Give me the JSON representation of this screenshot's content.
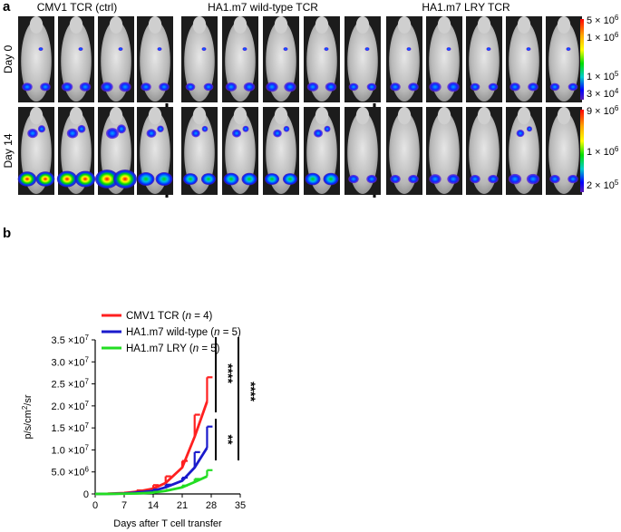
{
  "panel_a": {
    "label": "a",
    "groups": [
      {
        "label": "CMV1 TCR (ctrl)",
        "mice_day0": 4,
        "mice_day14": 4
      },
      {
        "label": "HA1.m7 wild-type TCR",
        "mice_day0": 5,
        "mice_day14": 5
      },
      {
        "label": "HA1.m7 LRY TCR",
        "mice_day0": 5,
        "mice_day14": 5
      }
    ],
    "rows": [
      {
        "label": "Day 0",
        "scale_labels": [
          {
            "base": "5 × 10",
            "exp": "6"
          },
          {
            "base": "1 × 10",
            "exp": "6"
          },
          {
            "base": "1 × 10",
            "exp": "5"
          },
          {
            "base": "3 × 10",
            "exp": "4"
          }
        ],
        "signal_levels": [
          [
            0.2,
            0.25,
            0.3,
            0.2
          ],
          [
            0.15,
            0.25,
            0.3,
            0.25,
            0.15
          ],
          [
            0.2,
            0.3,
            0.15,
            0.2,
            0.15
          ]
        ]
      },
      {
        "label": "Day 14",
        "scale_labels": [
          {
            "base": "9 × 10",
            "exp": "6"
          },
          {
            "base": "1 × 10",
            "exp": "6"
          },
          {
            "base": "2 × 10",
            "exp": "5"
          }
        ],
        "signal_levels": [
          [
            0.7,
            0.8,
            1.0,
            0.6
          ],
          [
            0.45,
            0.5,
            0.45,
            0.5,
            0.2
          ],
          [
            0.2,
            0.3,
            0.2,
            0.35,
            0.2
          ]
        ]
      }
    ],
    "colormap": [
      "#ff0000",
      "#ffa500",
      "#ffff00",
      "#00dd00",
      "#00cccc",
      "#0000ff",
      "#5a1fb4"
    ]
  },
  "panel_b": {
    "label": "b",
    "significance": [
      "****",
      "**",
      "****"
    ]
  },
  "chart_data": {
    "type": "line",
    "xlabel": "Days after T cell transfer",
    "ylabel_base": "p/s/cm",
    "ylabel_sup": "2",
    "ylabel_tail": "/sr",
    "xlim": [
      0,
      35
    ],
    "ylim": [
      0,
      35000000
    ],
    "x_ticks": [
      "0",
      "7",
      "14",
      "21",
      "28",
      "35"
    ],
    "y_ticks": [
      {
        "value": 0,
        "label": "0"
      },
      {
        "value": 5000000,
        "base": "5.0 ×10",
        "exp": "6"
      },
      {
        "value": 10000000,
        "base": "1.0 ×10",
        "exp": "7"
      },
      {
        "value": 15000000,
        "base": "1.5 ×10",
        "exp": "7"
      },
      {
        "value": 20000000,
        "base": "2.0 ×10",
        "exp": "7"
      },
      {
        "value": 25000000,
        "base": "2.5 ×10",
        "exp": "7"
      },
      {
        "value": 30000000,
        "base": "3.0 ×10",
        "exp": "7"
      },
      {
        "value": 35000000,
        "base": "3.5 ×10",
        "exp": "7"
      }
    ],
    "x": [
      0,
      3,
      7,
      10,
      14,
      17,
      21,
      24,
      27
    ],
    "series": [
      {
        "name": "CMV1 TCR (",
        "n_label": "n",
        "n_value": " = 4)",
        "color": "#ff2020",
        "values": [
          0,
          50000,
          200000,
          500000,
          1200000,
          2500000,
          6000000,
          13000000,
          21000000
        ],
        "errors": [
          0,
          50000,
          100000,
          300000,
          800000,
          1500000,
          1500000,
          5000000,
          5500000
        ]
      },
      {
        "name": "HA1.m7 wild-type (",
        "n_label": "n",
        "n_value": " = 5)",
        "color": "#1a1acc",
        "values": [
          0,
          30000,
          100000,
          300000,
          700000,
          1500000,
          3000000,
          6000000,
          10500000
        ],
        "errors": [
          0,
          30000,
          80000,
          150000,
          300000,
          600000,
          700000,
          3500000,
          4800000
        ]
      },
      {
        "name": "HA1.m7 LRY (",
        "n_label": "n",
        "n_value": " = 5)",
        "color": "#22dd22",
        "values": [
          0,
          10000,
          50000,
          100000,
          300000,
          700000,
          1500000,
          2700000,
          4000000
        ],
        "errors": [
          0,
          10000,
          30000,
          50000,
          150000,
          200000,
          400000,
          700000,
          1400000
        ]
      }
    ]
  }
}
